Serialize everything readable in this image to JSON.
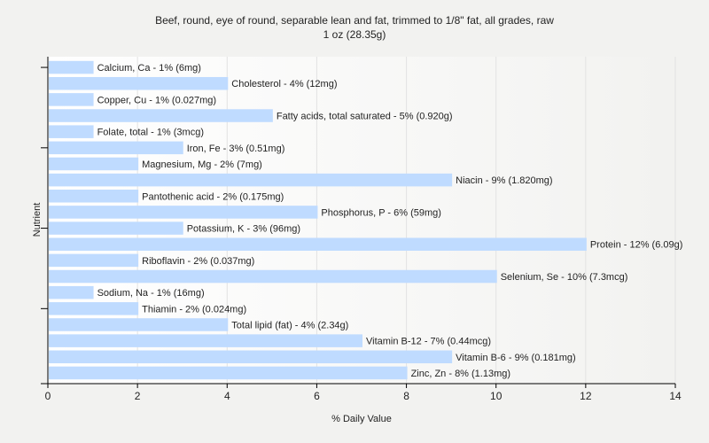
{
  "chart_data": {
    "type": "bar",
    "orientation": "horizontal",
    "title": "Beef, round, eye of round, separable lean and fat, trimmed to 1/8\" fat, all grades, raw",
    "subtitle": "1 oz (28.35g)",
    "xlabel": "% Daily Value",
    "ylabel": "Nutrient",
    "xlim": [
      0,
      14
    ],
    "xticks": [
      "0",
      "2",
      "4",
      "6",
      "8",
      "10",
      "12",
      "14"
    ],
    "grid": true,
    "bar_color": "#bfdbff",
    "categories": [
      "Calcium, Ca",
      "Cholesterol",
      "Copper, Cu",
      "Fatty acids, total saturated",
      "Folate, total",
      "Iron, Fe",
      "Magnesium, Mg",
      "Niacin",
      "Pantothenic acid",
      "Phosphorus, P",
      "Potassium, K",
      "Protein",
      "Riboflavin",
      "Selenium, Se",
      "Sodium, Na",
      "Thiamin",
      "Total lipid (fat)",
      "Vitamin B-12",
      "Vitamin B-6",
      "Zinc, Zn"
    ],
    "values": [
      1,
      4,
      1,
      5,
      1,
      3,
      2,
      9,
      2,
      6,
      3,
      12,
      2,
      10,
      1,
      2,
      4,
      7,
      9,
      8
    ],
    "labels": [
      "Calcium, Ca - 1% (6mg)",
      "Cholesterol - 4% (12mg)",
      "Copper, Cu - 1% (0.027mg)",
      "Fatty acids, total saturated - 5% (0.920g)",
      "Folate, total - 1% (3mcg)",
      "Iron, Fe - 3% (0.51mg)",
      "Magnesium, Mg - 2% (7mg)",
      "Niacin - 9% (1.820mg)",
      "Pantothenic acid - 2% (0.175mg)",
      "Phosphorus, P - 6% (59mg)",
      "Potassium, K - 3% (96mg)",
      "Protein - 12% (6.09g)",
      "Riboflavin - 2% (0.037mg)",
      "Selenium, Se - 10% (7.3mcg)",
      "Sodium, Na - 1% (16mg)",
      "Thiamin - 2% (0.024mg)",
      "Total lipid (fat) - 4% (2.34g)",
      "Vitamin B-12 - 7% (0.44mcg)",
      "Vitamin B-6 - 9% (0.181mg)",
      "Zinc, Zn - 8% (1.13mg)"
    ]
  }
}
